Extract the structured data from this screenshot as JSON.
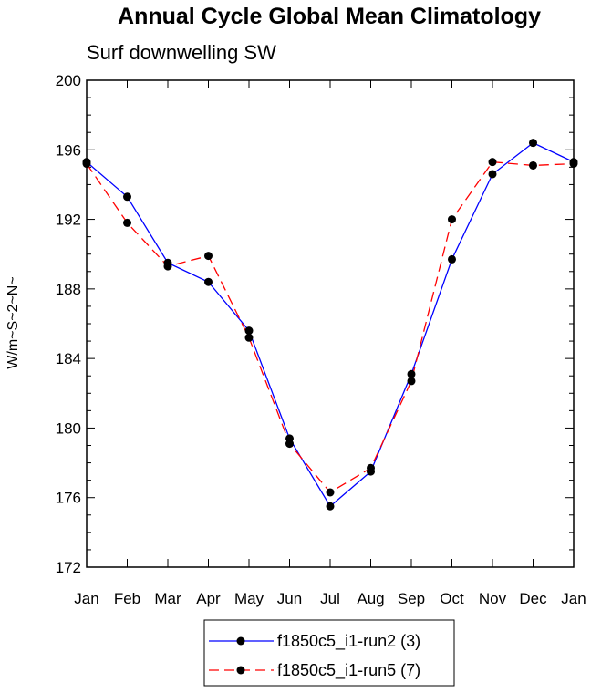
{
  "chart_data": {
    "type": "line",
    "title": "Annual Cycle Global Mean Climatology",
    "subtitle": "Surf downwelling SW",
    "xlabel": "",
    "ylabel": "W/m~S~2~N~",
    "categories": [
      "Jan",
      "Feb",
      "Mar",
      "Apr",
      "May",
      "Jun",
      "Jul",
      "Aug",
      "Sep",
      "Oct",
      "Nov",
      "Dec",
      "Jan"
    ],
    "ylim": [
      172,
      200
    ],
    "yticks": [
      "172",
      "176",
      "180",
      "184",
      "188",
      "192",
      "196",
      "200"
    ],
    "legend_position": "bottom-center",
    "series": [
      {
        "name": "f1850c5_i1-run2 (3)",
        "color": "#0000ff",
        "dash": "solid",
        "values": [
          195.3,
          193.3,
          189.5,
          188.4,
          185.6,
          179.4,
          175.5,
          177.5,
          183.1,
          189.7,
          194.6,
          196.4,
          195.3
        ]
      },
      {
        "name": "f1850c5_i1-run5 (7)",
        "color": "#ff0000",
        "dash": "dashed",
        "values": [
          195.2,
          191.8,
          189.3,
          189.9,
          185.2,
          179.1,
          176.3,
          177.7,
          182.7,
          192.0,
          195.3,
          195.1,
          195.2
        ]
      }
    ]
  }
}
